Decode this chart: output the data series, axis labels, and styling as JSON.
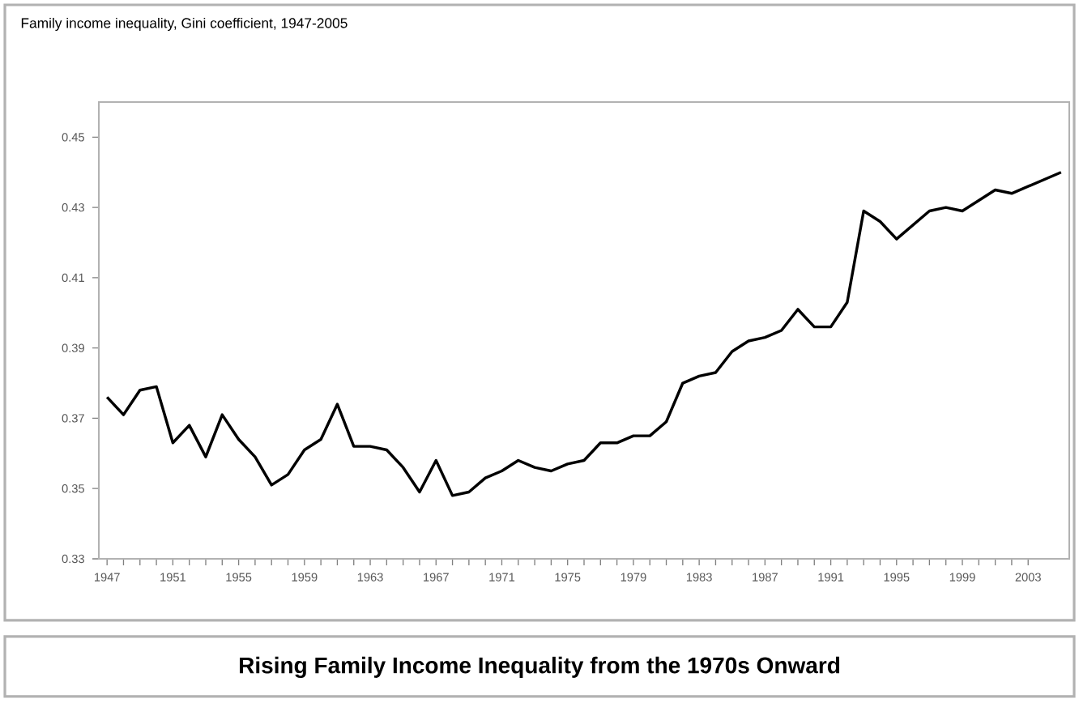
{
  "chart_data": {
    "type": "line",
    "title": "Rising Family Income Inequality from the 1970s Onward",
    "subtitle": "Family income inequality, Gini coefficient, 1947-2005",
    "x": [
      1947,
      1948,
      1949,
      1950,
      1951,
      1952,
      1953,
      1954,
      1955,
      1956,
      1957,
      1958,
      1959,
      1960,
      1961,
      1962,
      1963,
      1964,
      1965,
      1966,
      1967,
      1968,
      1969,
      1970,
      1971,
      1972,
      1973,
      1974,
      1975,
      1976,
      1977,
      1978,
      1979,
      1980,
      1981,
      1982,
      1983,
      1984,
      1985,
      1986,
      1987,
      1988,
      1989,
      1990,
      1991,
      1992,
      1993,
      1994,
      1995,
      1996,
      1997,
      1998,
      1999,
      2000,
      2001,
      2002,
      2003,
      2004,
      2005
    ],
    "series": [
      {
        "color": "#000000",
        "values": [
          0.376,
          0.371,
          0.378,
          0.379,
          0.363,
          0.368,
          0.359,
          0.371,
          0.364,
          0.359,
          0.351,
          0.354,
          0.361,
          0.364,
          0.374,
          0.362,
          0.362,
          0.361,
          0.356,
          0.349,
          0.358,
          0.348,
          0.349,
          0.353,
          0.355,
          0.358,
          0.356,
          0.355,
          0.357,
          0.358,
          0.363,
          0.363,
          0.365,
          0.365,
          0.369,
          0.38,
          0.382,
          0.383,
          0.389,
          0.392,
          0.393,
          0.395,
          0.401,
          0.396,
          0.396,
          0.403,
          0.429,
          0.426,
          0.421,
          0.425,
          0.429,
          0.43,
          0.429,
          0.432,
          0.435,
          0.434,
          0.436,
          0.438,
          0.44
        ]
      }
    ],
    "xlim": [
      1946.5,
      2005.5
    ],
    "xticks": [
      1947,
      1951,
      1955,
      1959,
      1963,
      1967,
      1971,
      1975,
      1979,
      1983,
      1987,
      1991,
      1995,
      1999,
      2003
    ],
    "ylim": [
      0.33,
      0.46
    ],
    "yticks": [
      0.33,
      0.35,
      0.37,
      0.39,
      0.41,
      0.43,
      0.45
    ]
  }
}
